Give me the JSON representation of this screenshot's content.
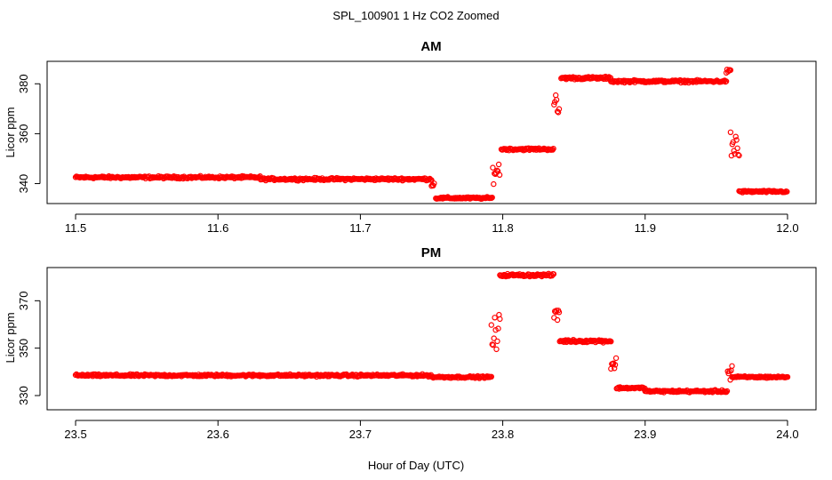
{
  "figure": {
    "title": "SPL_100901  1 Hz CO2 Zoomed",
    "xlabel": "Hour of Day (UTC)",
    "point_color": "#ff0000"
  },
  "chart_data": [
    {
      "type": "scatter",
      "title": "AM",
      "xlabel": "",
      "ylabel": "Licor ppm",
      "xlim": [
        11.5,
        12.0
      ],
      "ylim": [
        332,
        389
      ],
      "x_ticks": [
        11.5,
        11.6,
        11.7,
        11.8,
        11.9,
        12.0
      ],
      "x_tick_labels": [
        "11.5",
        "11.6",
        "11.7",
        "11.8",
        "11.9",
        "12.0"
      ],
      "y_ticks": [
        340,
        360,
        380
      ],
      "y_tick_labels": [
        "340",
        "360",
        "380"
      ],
      "marker": "open-circle",
      "segments": [
        {
          "x0": 11.5,
          "x1": 11.63,
          "y": 342.5,
          "noise": 0.7
        },
        {
          "x0": 11.63,
          "x1": 11.75,
          "y": 341.8,
          "noise": 0.7
        },
        {
          "x0": 11.75,
          "x1": 11.752,
          "y": 339.5,
          "noise": 1.5
        },
        {
          "x0": 11.753,
          "x1": 11.793,
          "y": 334.2,
          "noise": 0.6
        },
        {
          "x0": 11.793,
          "x1": 11.798,
          "y": 345.0,
          "noise": 6.0
        },
        {
          "x0": 11.799,
          "x1": 11.836,
          "y": 353.8,
          "noise": 0.7
        },
        {
          "x0": 11.836,
          "x1": 11.84,
          "y": 370.0,
          "noise": 9.0
        },
        {
          "x0": 11.841,
          "x1": 11.876,
          "y": 382.3,
          "noise": 0.8
        },
        {
          "x0": 11.876,
          "x1": 11.957,
          "y": 381.0,
          "noise": 0.7
        },
        {
          "x0": 11.957,
          "x1": 11.96,
          "y": 385.0,
          "noise": 1.2
        },
        {
          "x0": 11.96,
          "x1": 11.966,
          "y": 355.0,
          "noise": 14.0
        },
        {
          "x0": 11.966,
          "x1": 12.0,
          "y": 336.8,
          "noise": 0.6
        }
      ]
    },
    {
      "type": "scatter",
      "title": "PM",
      "xlabel": "",
      "ylabel": "Licor ppm",
      "xlim": [
        23.5,
        24.0
      ],
      "ylim": [
        324,
        384
      ],
      "x_ticks": [
        23.5,
        23.6,
        23.7,
        23.8,
        23.9,
        24.0
      ],
      "x_tick_labels": [
        "23.5",
        "23.6",
        "23.7",
        "23.8",
        "23.9",
        "24.0"
      ],
      "y_ticks": [
        330,
        350,
        370
      ],
      "y_tick_labels": [
        "330",
        "350",
        "370"
      ],
      "marker": "open-circle",
      "segments": [
        {
          "x0": 23.5,
          "x1": 23.75,
          "y": 338.5,
          "noise": 0.7
        },
        {
          "x0": 23.75,
          "x1": 23.792,
          "y": 337.8,
          "noise": 0.6
        },
        {
          "x0": 23.792,
          "x1": 23.798,
          "y": 355.0,
          "noise": 14.0
        },
        {
          "x0": 23.798,
          "x1": 23.836,
          "y": 380.8,
          "noise": 0.8
        },
        {
          "x0": 23.836,
          "x1": 23.84,
          "y": 365.0,
          "noise": 9.0
        },
        {
          "x0": 23.84,
          "x1": 23.876,
          "y": 353.0,
          "noise": 0.8
        },
        {
          "x0": 23.876,
          "x1": 23.88,
          "y": 343.0,
          "noise": 5.0
        },
        {
          "x0": 23.88,
          "x1": 23.9,
          "y": 333.2,
          "noise": 0.6
        },
        {
          "x0": 23.9,
          "x1": 23.958,
          "y": 331.8,
          "noise": 0.7
        },
        {
          "x0": 23.958,
          "x1": 23.961,
          "y": 340.0,
          "noise": 7.0
        },
        {
          "x0": 23.961,
          "x1": 24.0,
          "y": 337.8,
          "noise": 0.6
        }
      ]
    }
  ]
}
